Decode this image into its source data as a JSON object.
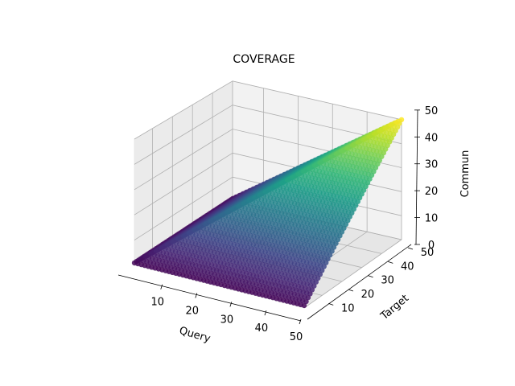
{
  "chart_data": {
    "type": "scatter",
    "plot_kind": "3d-scatter",
    "title": "COVERAGE",
    "xlabel": "Query",
    "ylabel": "Target",
    "zlabel": "Commun",
    "x_ticks": [
      10,
      20,
      30,
      40,
      50
    ],
    "y_ticks": [
      10,
      20,
      30,
      40,
      50
    ],
    "z_ticks": [
      0,
      10,
      20,
      30,
      40,
      50
    ],
    "xlim": [
      1,
      50
    ],
    "ylim": [
      1,
      50
    ],
    "zlim": [
      0,
      50
    ],
    "grid": true,
    "colormap": "viridis",
    "color_by": "z",
    "points": {
      "description_rule": "for every integer Query and Target in 1..50, Commun = min(Query, Target)",
      "x_range": [
        1,
        50
      ],
      "y_range": [
        1,
        50
      ],
      "z_rule": "min"
    },
    "colors": {
      "cmap_stops": [
        "#440154",
        "#482878",
        "#3e4989",
        "#31688e",
        "#26828e",
        "#1f9e89",
        "#35b779",
        "#6ece58",
        "#b5de2b",
        "#fde725"
      ]
    }
  }
}
